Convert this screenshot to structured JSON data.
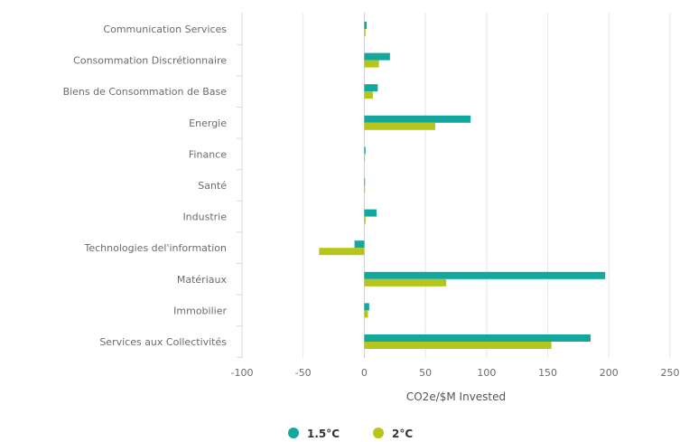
{
  "chart_data": {
    "type": "bar",
    "orientation": "horizontal",
    "categories": [
      "Communication Services",
      "Consommation Discrétionnaire",
      "Biens de Consommation de Base",
      "Energie",
      "Finance",
      "Santé",
      "Industrie",
      "Technologies del'information",
      "Matériaux",
      "Immobilier",
      "Services aux Collectivités"
    ],
    "series": [
      {
        "name": "1.5°C",
        "color": "#14a79d",
        "values": [
          2,
          21,
          11,
          87,
          1,
          0.5,
          10,
          -8,
          197,
          4,
          185
        ]
      },
      {
        "name": "2°C",
        "color": "#b6c51c",
        "values": [
          1,
          12,
          7,
          58,
          0.5,
          0.3,
          1,
          -37,
          67,
          3,
          153
        ]
      }
    ],
    "xlabel": "CO2e/$M Invested",
    "xlim": [
      -100,
      250
    ],
    "xticks": [
      -100,
      -50,
      0,
      50,
      100,
      150,
      200,
      250
    ],
    "xtick_labels": [
      "-100",
      "-50",
      "0",
      "50",
      "100",
      "150",
      "200",
      "250"
    ],
    "grid": "vertical",
    "legend_position": "bottom"
  }
}
